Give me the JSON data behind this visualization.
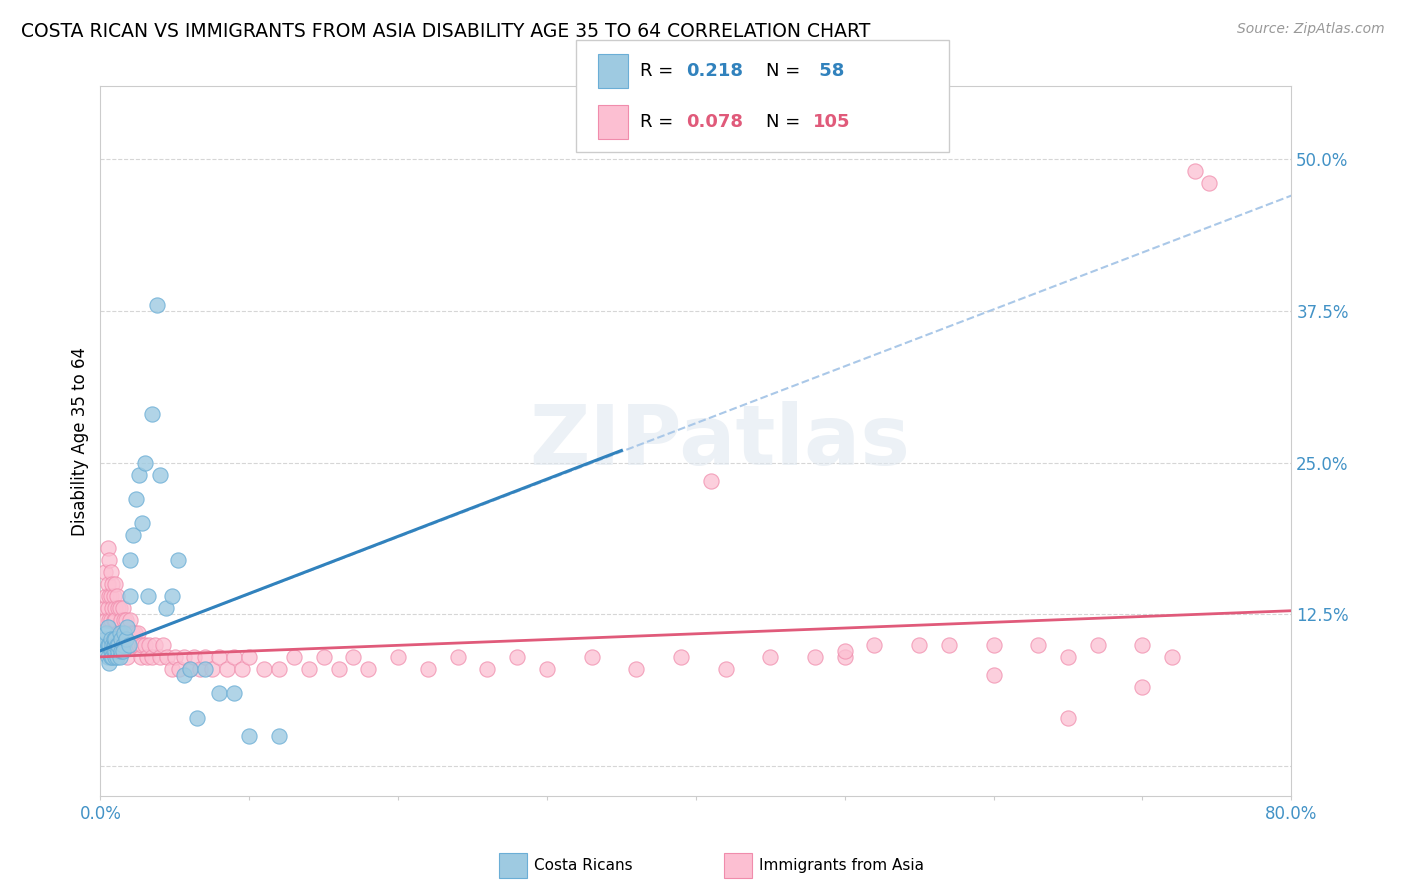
{
  "title": "COSTA RICAN VS IMMIGRANTS FROM ASIA DISABILITY AGE 35 TO 64 CORRELATION CHART",
  "source": "Source: ZipAtlas.com",
  "ylabel": "Disability Age 35 to 64",
  "xlim": [
    0.0,
    0.8
  ],
  "ylim": [
    -0.025,
    0.56
  ],
  "color_blue": "#9ecae1",
  "color_blue_edge": "#6baed6",
  "color_pink": "#fcbfd2",
  "color_pink_edge": "#f08cac",
  "color_line_blue": "#3182bd",
  "color_line_pink": "#e05a7a",
  "color_line_dashed": "#aac8e8",
  "watermark": "ZIPatlas",
  "blue_line_x0": 0.0,
  "blue_line_y0": 0.095,
  "blue_line_x1": 0.35,
  "blue_line_y1": 0.26,
  "pink_line_x0": 0.0,
  "pink_line_y0": 0.09,
  "pink_line_x1": 0.8,
  "pink_line_y1": 0.128,
  "dashed_line_x0": 0.0,
  "dashed_line_y0": 0.095,
  "dashed_line_x1": 0.8,
  "dashed_line_y1": 0.47,
  "cr_x": [
    0.003,
    0.003,
    0.004,
    0.004,
    0.005,
    0.005,
    0.005,
    0.006,
    0.006,
    0.007,
    0.007,
    0.007,
    0.008,
    0.008,
    0.008,
    0.009,
    0.009,
    0.009,
    0.01,
    0.01,
    0.01,
    0.01,
    0.011,
    0.011,
    0.012,
    0.012,
    0.013,
    0.013,
    0.014,
    0.014,
    0.015,
    0.015,
    0.016,
    0.017,
    0.018,
    0.019,
    0.02,
    0.02,
    0.022,
    0.024,
    0.026,
    0.028,
    0.03,
    0.032,
    0.035,
    0.038,
    0.04,
    0.044,
    0.048,
    0.052,
    0.056,
    0.06,
    0.065,
    0.07,
    0.08,
    0.09,
    0.1,
    0.12
  ],
  "cr_y": [
    0.1,
    0.105,
    0.095,
    0.11,
    0.09,
    0.1,
    0.115,
    0.085,
    0.1,
    0.09,
    0.095,
    0.105,
    0.1,
    0.095,
    0.09,
    0.1,
    0.105,
    0.095,
    0.09,
    0.095,
    0.1,
    0.105,
    0.09,
    0.1,
    0.095,
    0.1,
    0.11,
    0.09,
    0.105,
    0.095,
    0.1,
    0.095,
    0.11,
    0.105,
    0.115,
    0.1,
    0.17,
    0.14,
    0.19,
    0.22,
    0.24,
    0.2,
    0.25,
    0.14,
    0.29,
    0.38,
    0.24,
    0.13,
    0.14,
    0.17,
    0.075,
    0.08,
    0.04,
    0.08,
    0.06,
    0.06,
    0.025,
    0.025
  ],
  "asia_x": [
    0.003,
    0.003,
    0.004,
    0.004,
    0.005,
    0.005,
    0.005,
    0.006,
    0.006,
    0.006,
    0.007,
    0.007,
    0.007,
    0.008,
    0.008,
    0.009,
    0.009,
    0.01,
    0.01,
    0.01,
    0.01,
    0.011,
    0.011,
    0.012,
    0.012,
    0.013,
    0.013,
    0.014,
    0.015,
    0.015,
    0.016,
    0.016,
    0.017,
    0.018,
    0.018,
    0.019,
    0.02,
    0.02,
    0.021,
    0.022,
    0.023,
    0.024,
    0.025,
    0.026,
    0.027,
    0.028,
    0.03,
    0.031,
    0.033,
    0.035,
    0.037,
    0.04,
    0.042,
    0.045,
    0.048,
    0.05,
    0.053,
    0.056,
    0.06,
    0.063,
    0.067,
    0.07,
    0.075,
    0.08,
    0.085,
    0.09,
    0.095,
    0.1,
    0.11,
    0.12,
    0.13,
    0.14,
    0.15,
    0.16,
    0.17,
    0.18,
    0.2,
    0.22,
    0.24,
    0.26,
    0.28,
    0.3,
    0.33,
    0.36,
    0.39,
    0.42,
    0.45,
    0.48,
    0.5,
    0.52,
    0.55,
    0.57,
    0.6,
    0.63,
    0.65,
    0.67,
    0.7,
    0.72,
    0.735,
    0.745,
    0.41,
    0.5,
    0.6,
    0.7,
    0.65
  ],
  "asia_y": [
    0.16,
    0.13,
    0.14,
    0.12,
    0.18,
    0.15,
    0.13,
    0.17,
    0.14,
    0.12,
    0.16,
    0.14,
    0.12,
    0.15,
    0.13,
    0.14,
    0.12,
    0.15,
    0.13,
    0.12,
    0.1,
    0.14,
    0.11,
    0.13,
    0.11,
    0.13,
    0.11,
    0.12,
    0.13,
    0.11,
    0.12,
    0.1,
    0.12,
    0.11,
    0.09,
    0.11,
    0.12,
    0.1,
    0.11,
    0.1,
    0.11,
    0.1,
    0.11,
    0.1,
    0.09,
    0.1,
    0.1,
    0.09,
    0.1,
    0.09,
    0.1,
    0.09,
    0.1,
    0.09,
    0.08,
    0.09,
    0.08,
    0.09,
    0.08,
    0.09,
    0.08,
    0.09,
    0.08,
    0.09,
    0.08,
    0.09,
    0.08,
    0.09,
    0.08,
    0.08,
    0.09,
    0.08,
    0.09,
    0.08,
    0.09,
    0.08,
    0.09,
    0.08,
    0.09,
    0.08,
    0.09,
    0.08,
    0.09,
    0.08,
    0.09,
    0.08,
    0.09,
    0.09,
    0.09,
    0.1,
    0.1,
    0.1,
    0.1,
    0.1,
    0.09,
    0.1,
    0.1,
    0.09,
    0.49,
    0.48,
    0.235,
    0.095,
    0.075,
    0.065,
    0.04
  ]
}
